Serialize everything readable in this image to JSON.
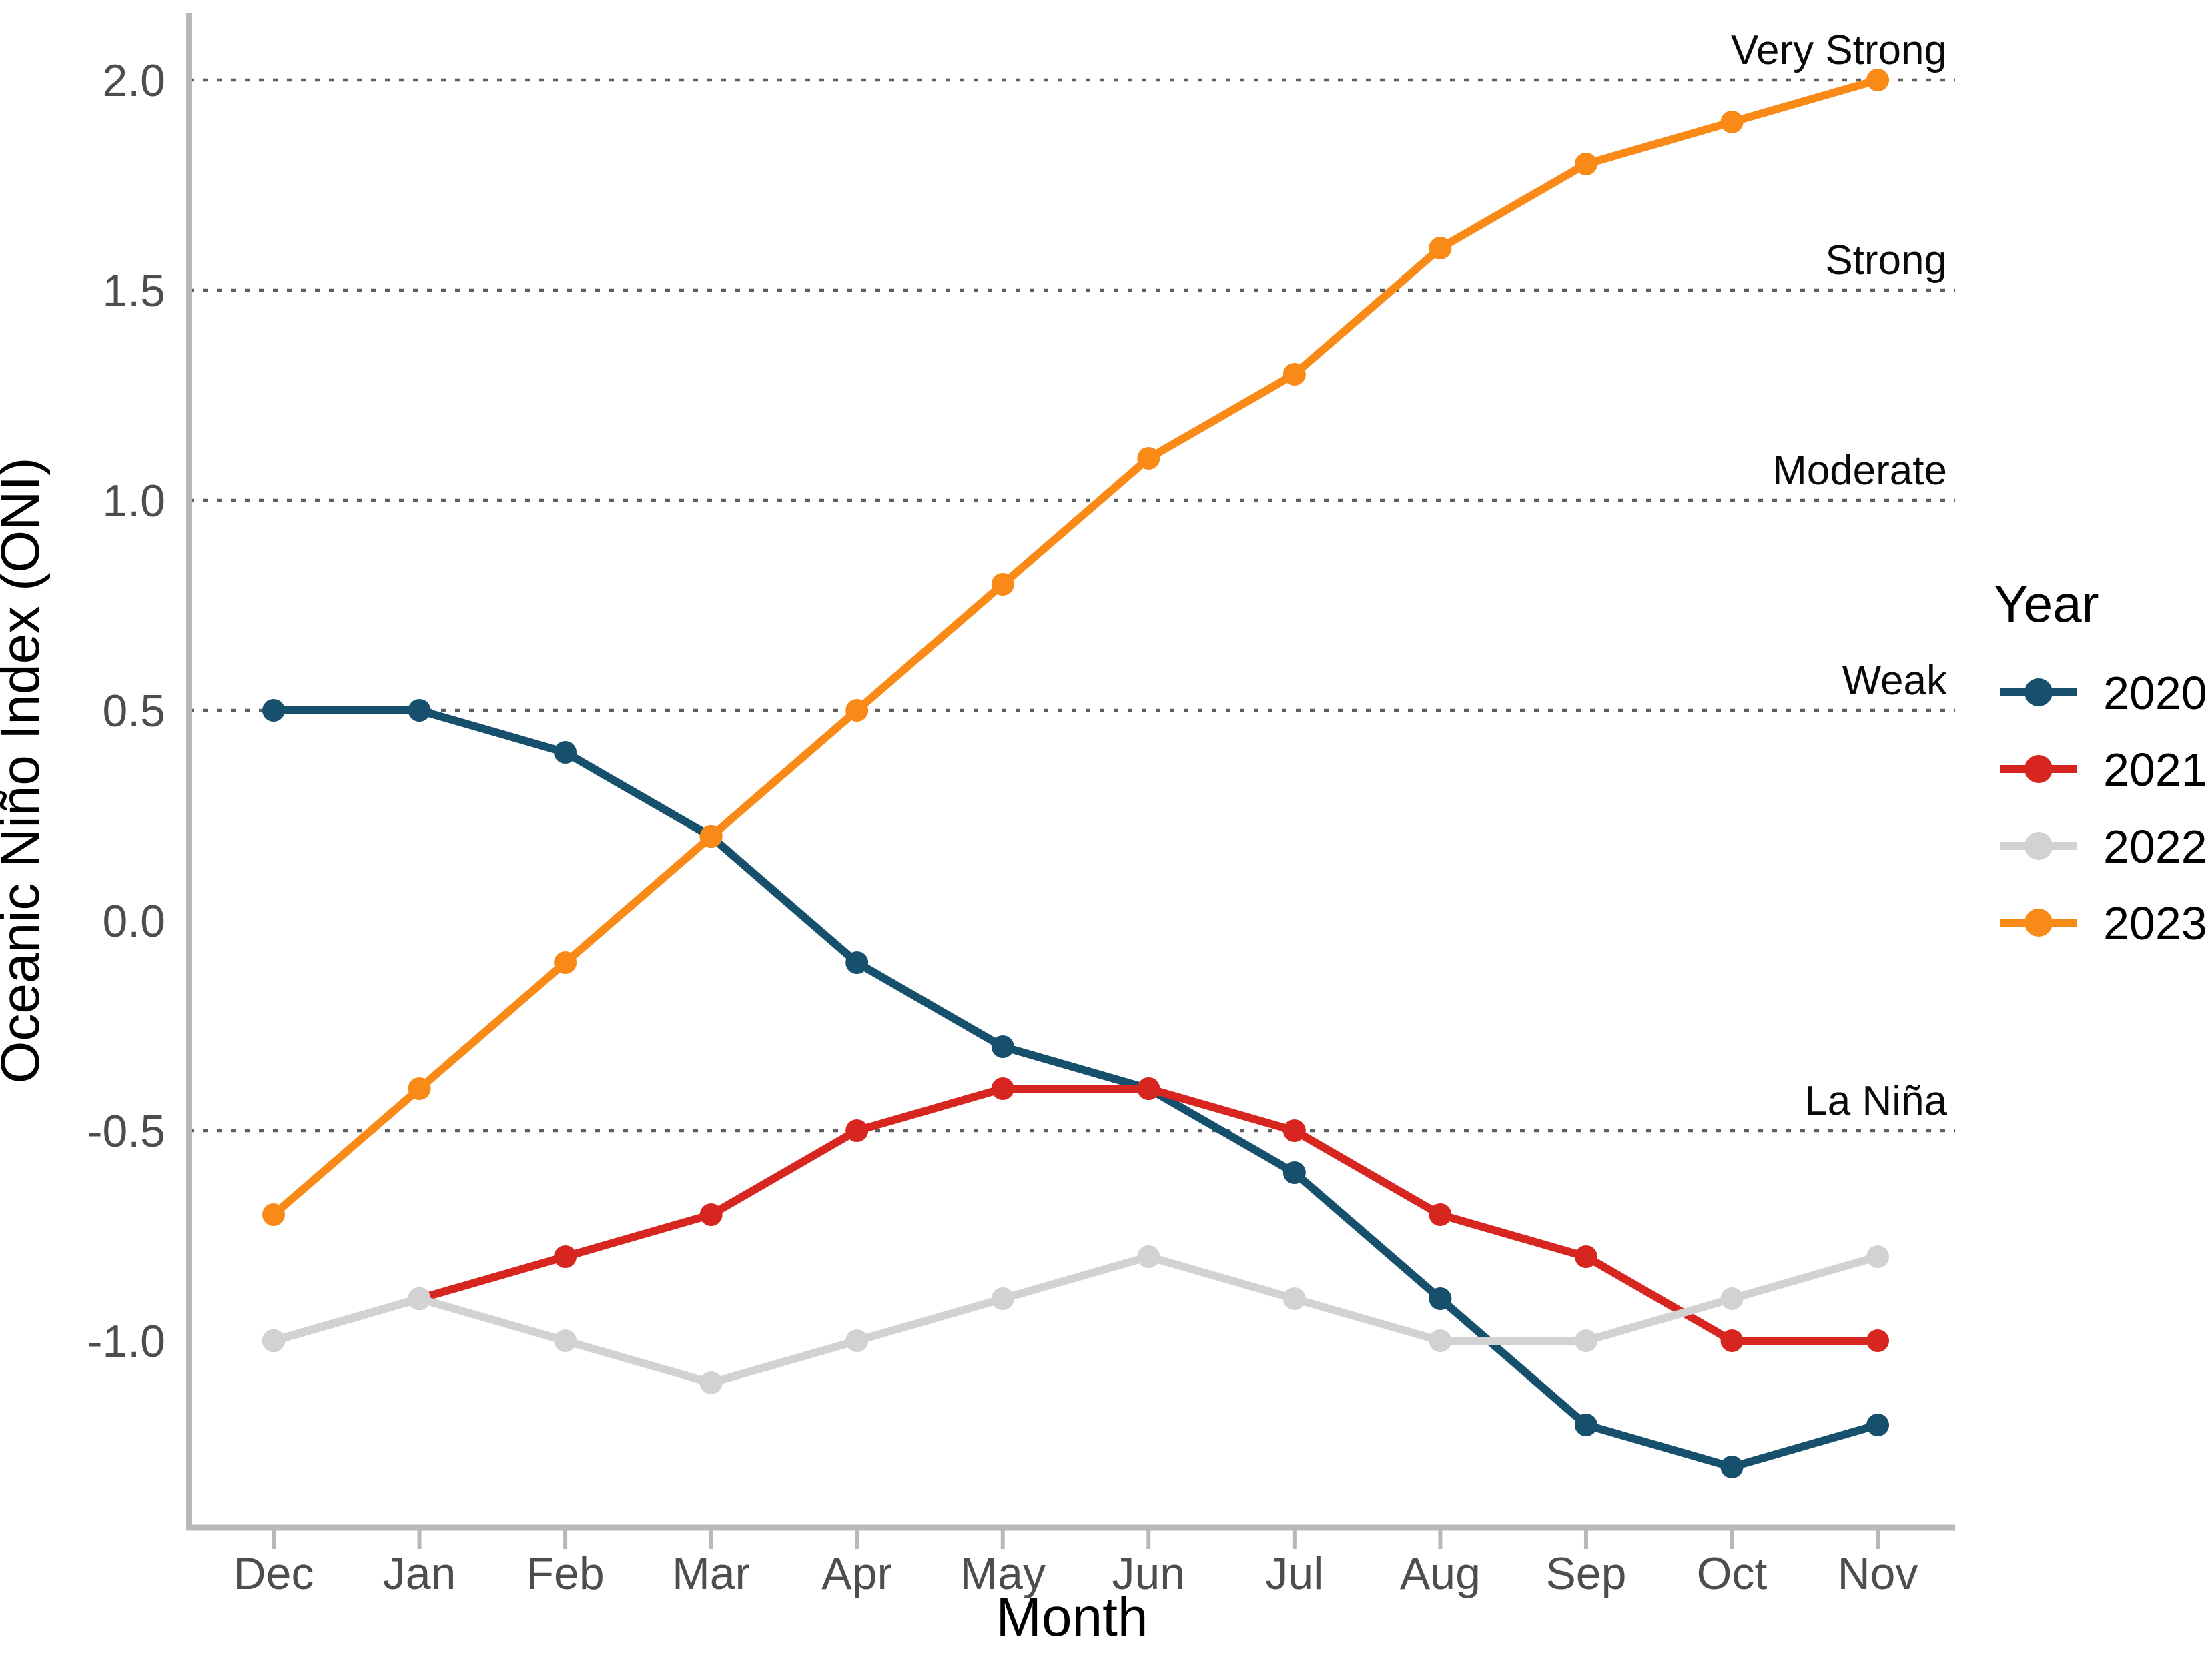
{
  "chart_data": {
    "type": "line",
    "title": "",
    "xlabel": "Month",
    "ylabel": "Oceanic Niño Index (ONI)",
    "categories": [
      "Dec",
      "Jan",
      "Feb",
      "Mar",
      "Apr",
      "May",
      "Jun",
      "Jul",
      "Aug",
      "Sep",
      "Oct",
      "Nov"
    ],
    "y_ticks": [
      "2.0",
      "1.5",
      "1.0",
      "0.5",
      "0.0",
      "-0.5",
      "-1.0"
    ],
    "y_tick_values": [
      2.0,
      1.5,
      1.0,
      0.5,
      0.0,
      -0.5,
      -1.0
    ],
    "ylim": [
      -1.45,
      2.15
    ],
    "grid": "off",
    "legend_position": "right",
    "legend_title": "Year",
    "thresholds": [
      {
        "label": "Very Strong",
        "value": 2.0
      },
      {
        "label": "Strong",
        "value": 1.5
      },
      {
        "label": "Moderate",
        "value": 1.0
      },
      {
        "label": "Weak",
        "value": 0.5
      },
      {
        "label": "La Niña",
        "value": -0.5
      }
    ],
    "series": [
      {
        "name": "2020",
        "color": "#16506c",
        "values": [
          0.5,
          0.5,
          0.4,
          0.2,
          -0.1,
          -0.3,
          -0.4,
          -0.6,
          -0.9,
          -1.2,
          -1.3,
          -1.2
        ]
      },
      {
        "name": "2021",
        "color": "#d7261f",
        "values": [
          -1.0,
          -0.9,
          -0.8,
          -0.7,
          -0.5,
          -0.4,
          -0.4,
          -0.5,
          -0.7,
          -0.8,
          -1.0,
          -1.0
        ]
      },
      {
        "name": "2022",
        "color": "#d2d2d2",
        "values": [
          -1.0,
          -0.9,
          -1.0,
          -1.1,
          -1.0,
          -0.9,
          -0.8,
          -0.9,
          -1.0,
          -1.0,
          -0.9,
          -0.8
        ]
      },
      {
        "name": "2023",
        "color": "#f98a17",
        "values": [
          -0.7,
          -0.4,
          -0.1,
          0.2,
          0.5,
          0.8,
          1.1,
          1.3,
          1.6,
          1.8,
          1.9,
          2.0
        ]
      }
    ]
  },
  "style": {
    "background": "#ffffff",
    "axis_color": "#b8b8b8",
    "threshold_line_color": "#5f5f5f",
    "tick_label_color": "#4d4d4d",
    "text_color": "#000000"
  }
}
